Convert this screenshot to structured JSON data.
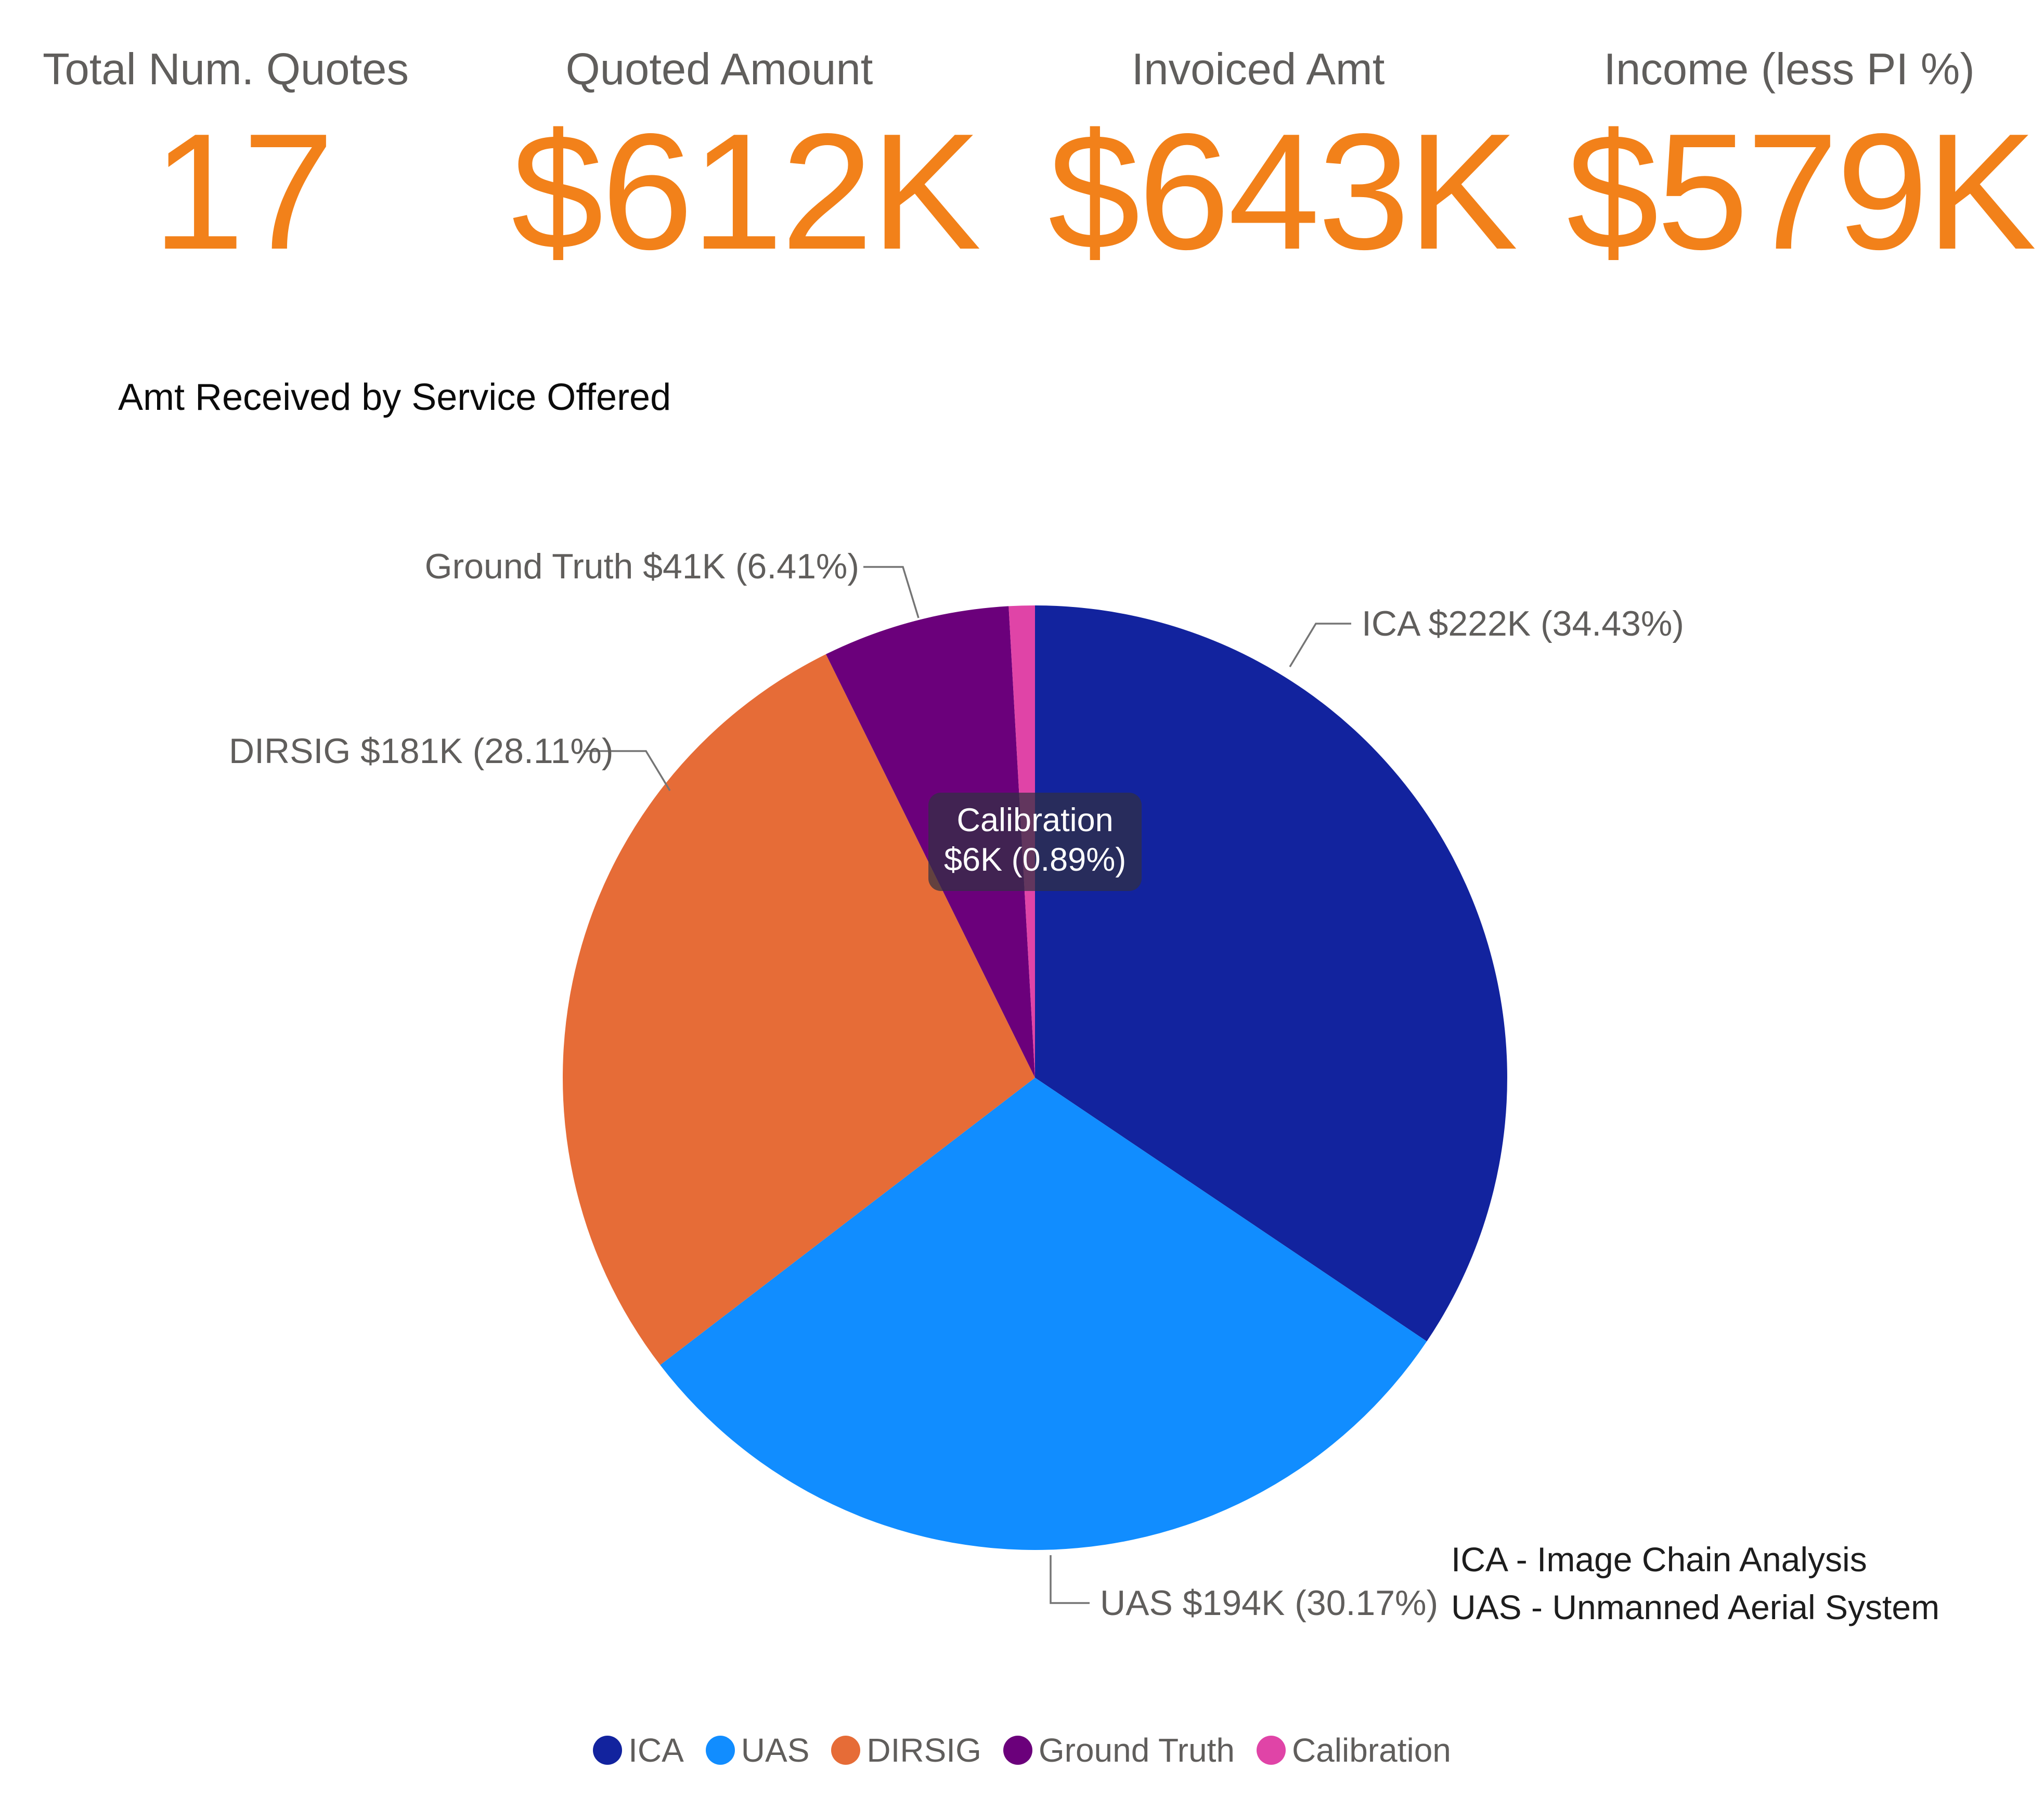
{
  "kpis": [
    {
      "label": "Total Num. Quotes",
      "value": "17"
    },
    {
      "label": "Quoted Amount",
      "value": "$612K"
    },
    {
      "label": "Invoiced Amt",
      "value": "$643K"
    },
    {
      "label": "Income (less PI %)",
      "value": "$579K"
    }
  ],
  "kpi_style": {
    "value_color": "#F2811A",
    "label_color": "#605E5C"
  },
  "pie_chart": {
    "title": "Amt Received by Service Offered",
    "callouts": [
      {
        "name": "ICA",
        "text": "ICA $222K (34.43%)"
      },
      {
        "name": "UAS",
        "text": "UAS $194K (30.17%)"
      },
      {
        "name": "DIRSIG",
        "text": "DIRSIG $181K (28.11%)"
      },
      {
        "name": "Ground Truth",
        "text": "Ground Truth $41K (6.41%)"
      }
    ],
    "tooltip": {
      "label": "Calibration",
      "value": "$6K (0.89%)"
    },
    "notes": [
      "ICA - Image Chain Analysis",
      "UAS - Unmanned Aerial System"
    ],
    "legend": [
      "ICA",
      "UAS",
      "DIRSIG",
      "Ground Truth",
      "Calibration"
    ]
  },
  "chart_data": {
    "type": "pie",
    "title": "Amt Received by Service Offered",
    "categories": [
      "ICA",
      "UAS",
      "DIRSIG",
      "Ground Truth",
      "Calibration"
    ],
    "values_usd_k": [
      222,
      194,
      181,
      41,
      6
    ],
    "percentages": [
      34.43,
      30.17,
      28.11,
      6.41,
      0.89
    ],
    "colors": [
      "#12239E",
      "#118DFF",
      "#E66C37",
      "#6B007B",
      "#E044A7"
    ],
    "start_angle": "12-o-clock",
    "direction": "clockwise",
    "legend_position": "bottom",
    "label_style": "category value percent"
  }
}
